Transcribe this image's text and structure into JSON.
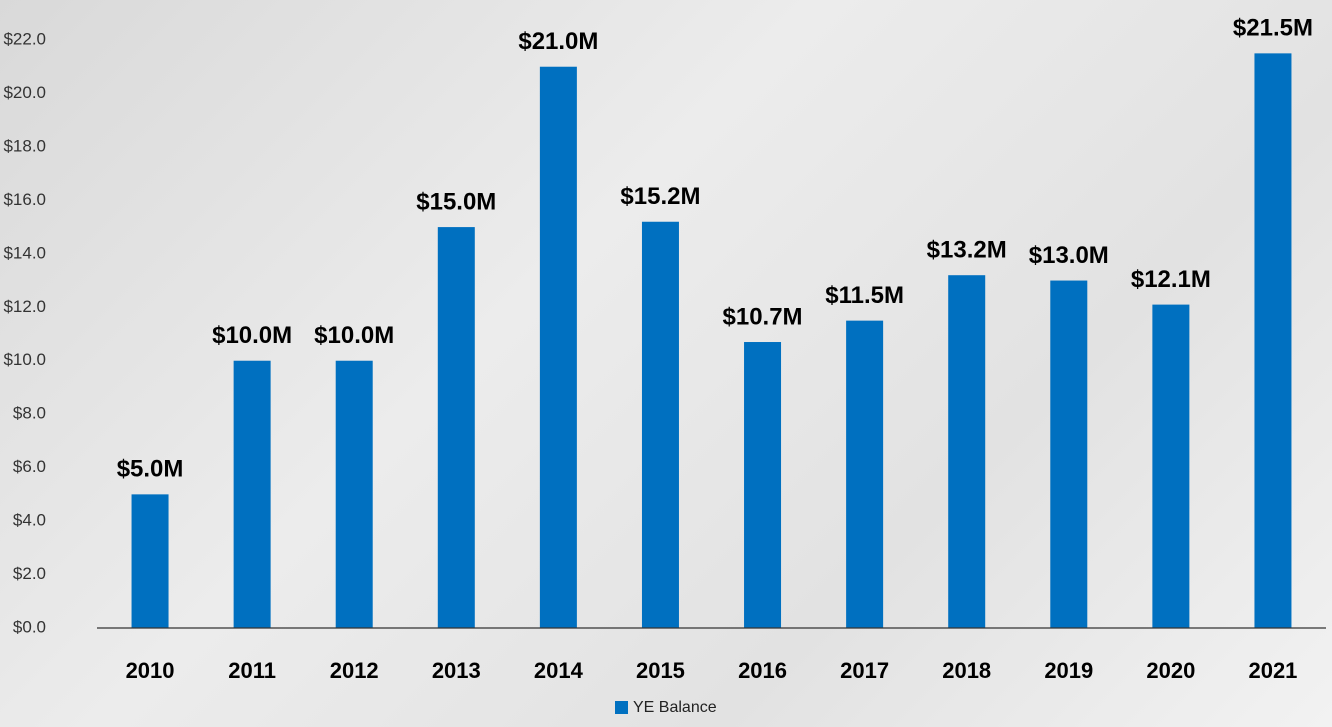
{
  "chart_data": {
    "type": "bar",
    "categories": [
      "2010",
      "2011",
      "2012",
      "2013",
      "2014",
      "2015",
      "2016",
      "2017",
      "2018",
      "2019",
      "2020",
      "2021"
    ],
    "series": [
      {
        "name": "YE Balance",
        "color": "#0070c0",
        "values": [
          5.0,
          10.0,
          10.0,
          15.0,
          21.0,
          15.2,
          10.7,
          11.5,
          13.2,
          13.0,
          12.1,
          21.5
        ],
        "value_labels": [
          "$5.0M",
          "$10.0M",
          "$10.0M",
          "$15.0M",
          "$21.0M",
          "$15.2M",
          "$10.7M",
          "$11.5M",
          "$13.2M",
          "$13.0M",
          "$12.1M",
          "$21.5M"
        ]
      }
    ],
    "ylim": [
      0,
      22
    ],
    "yticks": [
      {
        "value": 0,
        "label": "$0.0"
      },
      {
        "value": 2,
        "label": "$2.0"
      },
      {
        "value": 4,
        "label": "$4.0"
      },
      {
        "value": 6,
        "label": "$6.0"
      },
      {
        "value": 8,
        "label": "$8.0"
      },
      {
        "value": 10,
        "label": "$10.0"
      },
      {
        "value": 12,
        "label": "$12.0"
      },
      {
        "value": 14,
        "label": "$14.0"
      },
      {
        "value": 16,
        "label": "$16.0"
      },
      {
        "value": 18,
        "label": "$18.0"
      },
      {
        "value": 20,
        "label": "$20.0"
      },
      {
        "value": 22,
        "label": "$22.0"
      }
    ],
    "grid": false,
    "legend": "bottom"
  }
}
